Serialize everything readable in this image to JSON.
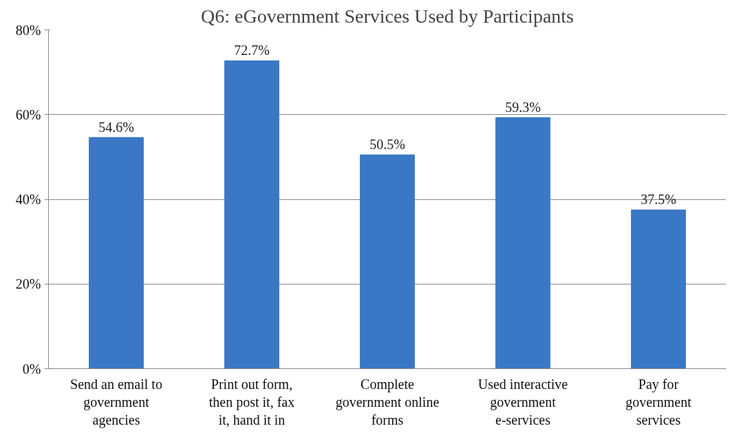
{
  "chart_data": {
    "type": "bar",
    "title": "Q6: eGovernment Services Used by Participants",
    "categories": [
      "Send an email to government agencies",
      "Print out form, then post it, fax it, hand it in",
      "Complete government online forms",
      "Used interactive government e-services",
      "Pay for government services"
    ],
    "values": [
      54.6,
      72.7,
      50.5,
      59.3,
      37.5
    ],
    "value_labels": [
      "54.6%",
      "72.7%",
      "50.5%",
      "59.3%",
      "37.5%"
    ],
    "color": "#3a78c6",
    "ylim": [
      0,
      80
    ],
    "yticks": [
      {
        "value": 0,
        "label": "0%"
      },
      {
        "value": 20,
        "label": "20%"
      },
      {
        "value": 40,
        "label": "40%"
      },
      {
        "value": 60,
        "label": "60%"
      },
      {
        "value": 80,
        "label": "80%"
      }
    ],
    "grid": "y"
  }
}
